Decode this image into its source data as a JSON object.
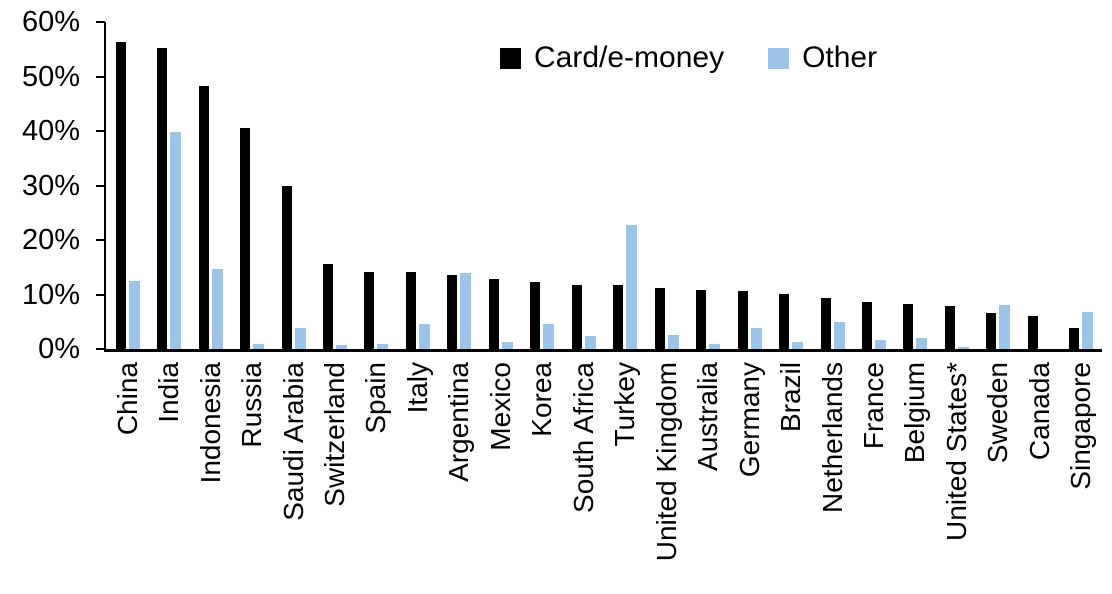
{
  "chart_data": {
    "type": "bar",
    "title": "",
    "xlabel": "",
    "ylabel": "",
    "ylim": [
      0,
      60
    ],
    "ytick_values": [
      0,
      10,
      20,
      30,
      40,
      50,
      60
    ],
    "ytick_labels": [
      "0%",
      "10%",
      "20%",
      "30%",
      "40%",
      "50%",
      "60%"
    ],
    "grid": false,
    "legend_position": "top-center",
    "categories": [
      "China",
      "India",
      "Indonesia",
      "Russia",
      "Saudi Arabia",
      "Switzerland",
      "Spain",
      "Italy",
      "Argentina",
      "Mexico",
      "Korea",
      "South Africa",
      "Turkey",
      "United Kingdom",
      "Australia",
      "Germany",
      "Brazil",
      "Netherlands",
      "France",
      "Belgium",
      "United States*",
      "Sweden",
      "Canada",
      "Singapore"
    ],
    "series": [
      {
        "name": "Card/e-money",
        "color": "#000000",
        "values": [
          56.3,
          55.2,
          48.3,
          40.6,
          29.9,
          15.6,
          14.2,
          14.2,
          13.5,
          12.9,
          12.3,
          11.8,
          11.7,
          11.2,
          10.9,
          10.7,
          10.0,
          9.3,
          8.7,
          8.2,
          7.9,
          6.6,
          6.1,
          3.9
        ]
      },
      {
        "name": "Other",
        "color": "#9DC3E6",
        "values": [
          12.4,
          39.8,
          14.6,
          1.0,
          3.9,
          0.8,
          1.0,
          4.6,
          13.9,
          1.3,
          4.6,
          2.4,
          22.7,
          2.5,
          1.0,
          3.9,
          1.2,
          4.9,
          1.7,
          2.1,
          0.3,
          8.1,
          0.0,
          6.8
        ]
      }
    ]
  }
}
